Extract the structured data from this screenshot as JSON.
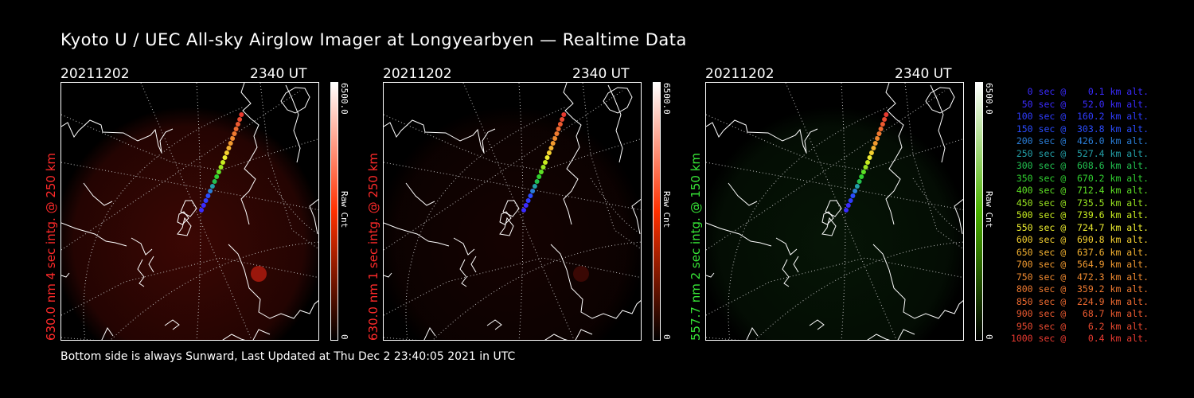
{
  "title": "Kyoto U / UEC All-sky Airglow Imager at Longyearbyen — Realtime Data",
  "footer": "Bottom side is always Sunward, Last Updated at Thu Dec  2 23:40:05 2021 in UTC",
  "panels": [
    {
      "date": "20211202",
      "time": "2340 UT",
      "label": "630.0 nm 4 sec intg. @ 250 km",
      "label_color": "#ff2a2a",
      "colorbar": {
        "max": "6500.0",
        "min": "0",
        "unit": "Raw Cnt",
        "color": "#ff3000"
      },
      "glow": "red",
      "glow_level": 0.35
    },
    {
      "date": "20211202",
      "time": "2340 UT",
      "label": "630.0 nm 1 sec intg. @ 250 km",
      "label_color": "#ff2a2a",
      "colorbar": {
        "max": "6500.0",
        "min": "0",
        "unit": "Raw Cnt",
        "color": "#ff3000"
      },
      "glow": "red",
      "glow_level": 0.12
    },
    {
      "date": "20211202",
      "time": "2340 UT",
      "label": "557.7 nm 2 sec intg. @ 150 km",
      "label_color": "#37e637",
      "colorbar": {
        "max": "6500.0",
        "min": "0",
        "unit": "Raw Cnt",
        "color": "#4ab000"
      },
      "glow": "green",
      "glow_level": 0.15
    }
  ],
  "legend": [
    {
      "text": "   0 sec @    0.1 km alt.",
      "color": "#3a2bff"
    },
    {
      "text": "  50 sec @   52.0 km alt.",
      "color": "#3a2bff"
    },
    {
      "text": " 100 sec @  160.2 km alt.",
      "color": "#2f3cff"
    },
    {
      "text": " 150 sec @  303.8 km alt.",
      "color": "#2a4cff"
    },
    {
      "text": " 200 sec @  426.0 km alt.",
      "color": "#2a7ed8"
    },
    {
      "text": " 250 sec @  527.4 km alt.",
      "color": "#23a0a8"
    },
    {
      "text": " 300 sec @  608.6 km alt.",
      "color": "#22c050"
    },
    {
      "text": " 350 sec @  670.2 km alt.",
      "color": "#30d030"
    },
    {
      "text": " 400 sec @  712.4 km alt.",
      "color": "#5ee025"
    },
    {
      "text": " 450 sec @  735.5 km alt.",
      "color": "#9ae620"
    },
    {
      "text": " 500 sec @  739.6 km alt.",
      "color": "#c8ec20"
    },
    {
      "text": " 550 sec @  724.7 km alt.",
      "color": "#eeee30"
    },
    {
      "text": " 600 sec @  690.8 km alt.",
      "color": "#f5d030"
    },
    {
      "text": " 650 sec @  637.6 km alt.",
      "color": "#f4b230"
    },
    {
      "text": " 700 sec @  564.9 km alt.",
      "color": "#f29a30"
    },
    {
      "text": " 750 sec @  472.3 km alt.",
      "color": "#f08a30"
    },
    {
      "text": " 800 sec @  359.2 km alt.",
      "color": "#ef7a30"
    },
    {
      "text": " 850 sec @  224.9 km alt.",
      "color": "#ee6a30"
    },
    {
      "text": " 900 sec @   68.7 km alt.",
      "color": "#ec5a30"
    },
    {
      "text": " 950 sec @    6.2 km alt.",
      "color": "#ea4a30"
    },
    {
      "text": "1000 sec @    0.4 km alt.",
      "color": "#e83a30"
    }
  ]
}
